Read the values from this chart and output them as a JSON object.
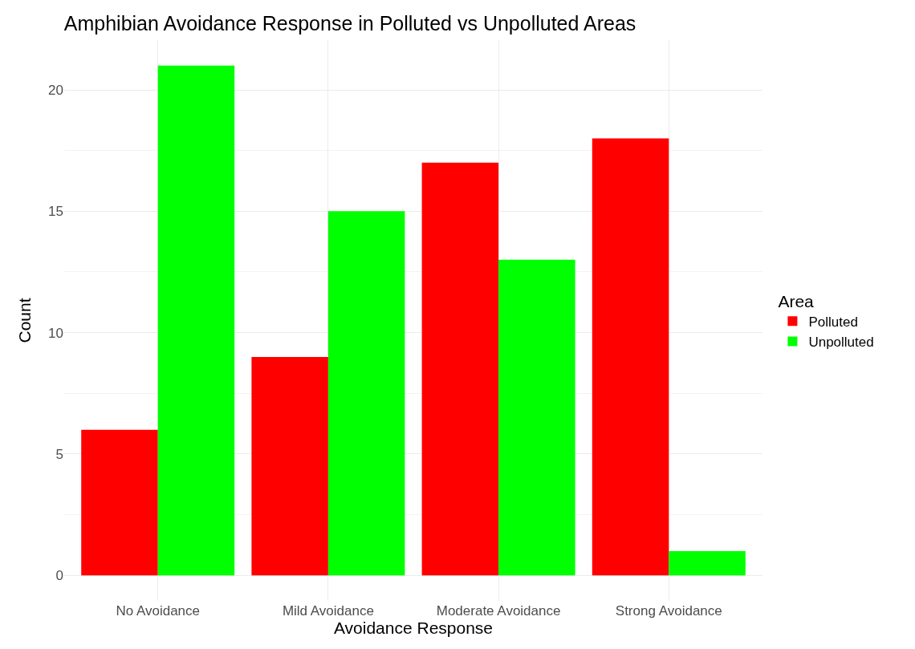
{
  "chart_data": {
    "type": "bar",
    "title": "Amphibian Avoidance Response in Polluted vs Unpolluted Areas",
    "xlabel": "Avoidance Response",
    "ylabel": "Count",
    "legend_title": "Area",
    "categories": [
      "No Avoidance",
      "Mild Avoidance",
      "Moderate Avoidance",
      "Strong Avoidance"
    ],
    "series": [
      {
        "name": "Polluted",
        "color": "#ff0000",
        "values": [
          6,
          9,
          17,
          18
        ]
      },
      {
        "name": "Unpolluted",
        "color": "#00ff00",
        "values": [
          21,
          15,
          13,
          1
        ]
      }
    ],
    "ylim": [
      -1.05,
      22.05
    ],
    "yticks": [
      0,
      5,
      10,
      15,
      20
    ],
    "grid": true,
    "legend": "right"
  }
}
